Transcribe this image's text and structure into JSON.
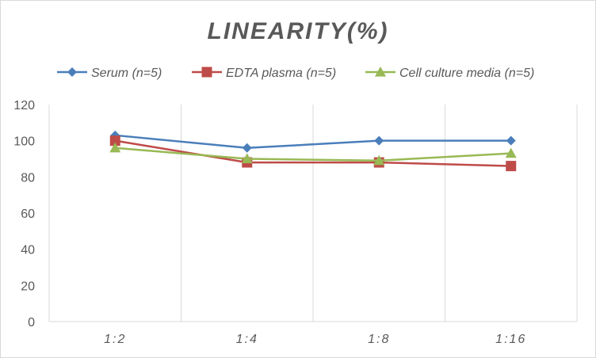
{
  "chart_data": {
    "type": "line",
    "title": "LINEARITY(%)",
    "categories": [
      "1:2",
      "1:4",
      "1:8",
      "1:16"
    ],
    "ylim": [
      0,
      120
    ],
    "yticks": [
      0,
      20,
      40,
      60,
      80,
      100,
      120
    ],
    "grid": "vertical-only",
    "legend": "top",
    "series": [
      {
        "name": "Serum (n=5)",
        "values": [
          103,
          96,
          100,
          100
        ],
        "color": "#4a7ebb",
        "marker": "diamond-icon"
      },
      {
        "name": "EDTA plasma (n=5)",
        "values": [
          100,
          88,
          88,
          86
        ],
        "color": "#be4b48",
        "marker": "square-icon"
      },
      {
        "name": "Cell culture media (n=5)",
        "values": [
          96,
          90,
          89,
          93
        ],
        "color": "#98b954",
        "marker": "triangle-icon"
      }
    ]
  }
}
